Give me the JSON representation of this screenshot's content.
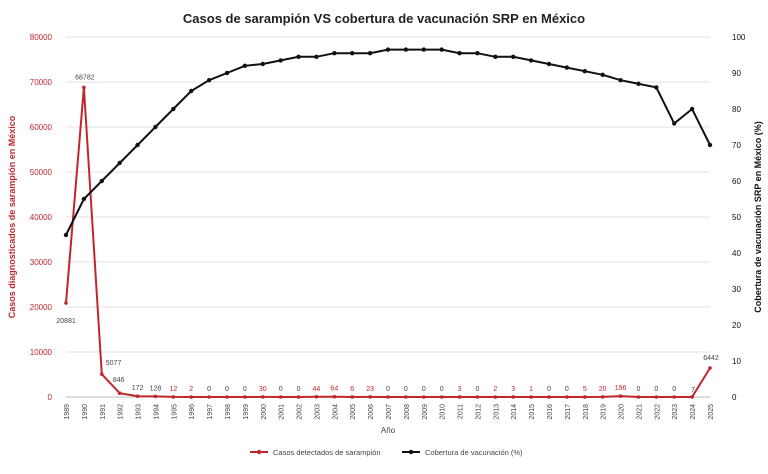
{
  "chart_data": {
    "type": "line",
    "title": "Casos de sarampión  VS cobertura de vacunación  SRP en México",
    "xlabel": "Año",
    "ylabel_left": "Casos diagnosticados de sarampión en México",
    "ylabel_right": "Cobertura de vacunación SRP en México (%)",
    "ylim_left": [
      0,
      80000
    ],
    "ylim_right": [
      0,
      100
    ],
    "yticks_left": [
      0,
      10000,
      20000,
      30000,
      40000,
      50000,
      60000,
      70000,
      80000
    ],
    "yticks_right": [
      0,
      10,
      20,
      30,
      40,
      50,
      60,
      70,
      80,
      90,
      100
    ],
    "grid": true,
    "legend_position": "bottom",
    "x": [
      "1989",
      "1990",
      "1991",
      "1992",
      "1993",
      "1994",
      "1995",
      "1996",
      "1997",
      "1998",
      "1999",
      "2000",
      "2001",
      "2002",
      "2003",
      "2004",
      "2005",
      "2006",
      "2007",
      "2008",
      "2009",
      "2010",
      "2011",
      "2012",
      "2013",
      "2014",
      "2015",
      "2016",
      "2017",
      "2018",
      "2019",
      "2020",
      "2021",
      "2022",
      "2023",
      "2024",
      "2025"
    ],
    "series": [
      {
        "name": "Casos detectados de sarampión",
        "axis": "left",
        "color": "#c0272d",
        "values": [
          20881,
          68782,
          5077,
          846,
          172,
          128,
          12,
          2,
          0,
          0,
          0,
          30,
          0,
          0,
          44,
          64,
          6,
          23,
          0,
          0,
          0,
          0,
          3,
          0,
          2,
          3,
          1,
          0,
          0,
          5,
          20,
          196,
          0,
          0,
          0,
          7,
          6442
        ],
        "labels": [
          "20881",
          "68782",
          "5077",
          "846",
          "172",
          "128",
          "12",
          "2",
          "0",
          "0",
          "0",
          "30",
          "0",
          "0",
          "44",
          "64",
          "6",
          "23",
          "0",
          "0",
          "0",
          "0",
          "3",
          "0",
          "2",
          "3",
          "1",
          "0",
          "0",
          "5",
          "20",
          "196",
          "0",
          "0",
          "0",
          "7",
          "6442"
        ]
      },
      {
        "name": "Cobertura de vacunación (%)",
        "axis": "right",
        "color": "#111111",
        "values": [
          45,
          55,
          60,
          65,
          70,
          75,
          80,
          85,
          88,
          90,
          92,
          92.5,
          93.5,
          94.5,
          94.5,
          95.5,
          95.5,
          95.5,
          96.5,
          96.5,
          96.5,
          96.5,
          95.5,
          95.5,
          94.5,
          94.5,
          93.5,
          92.5,
          91.5,
          90.5,
          89.5,
          88,
          87,
          86,
          76,
          80,
          70
        ]
      }
    ]
  }
}
